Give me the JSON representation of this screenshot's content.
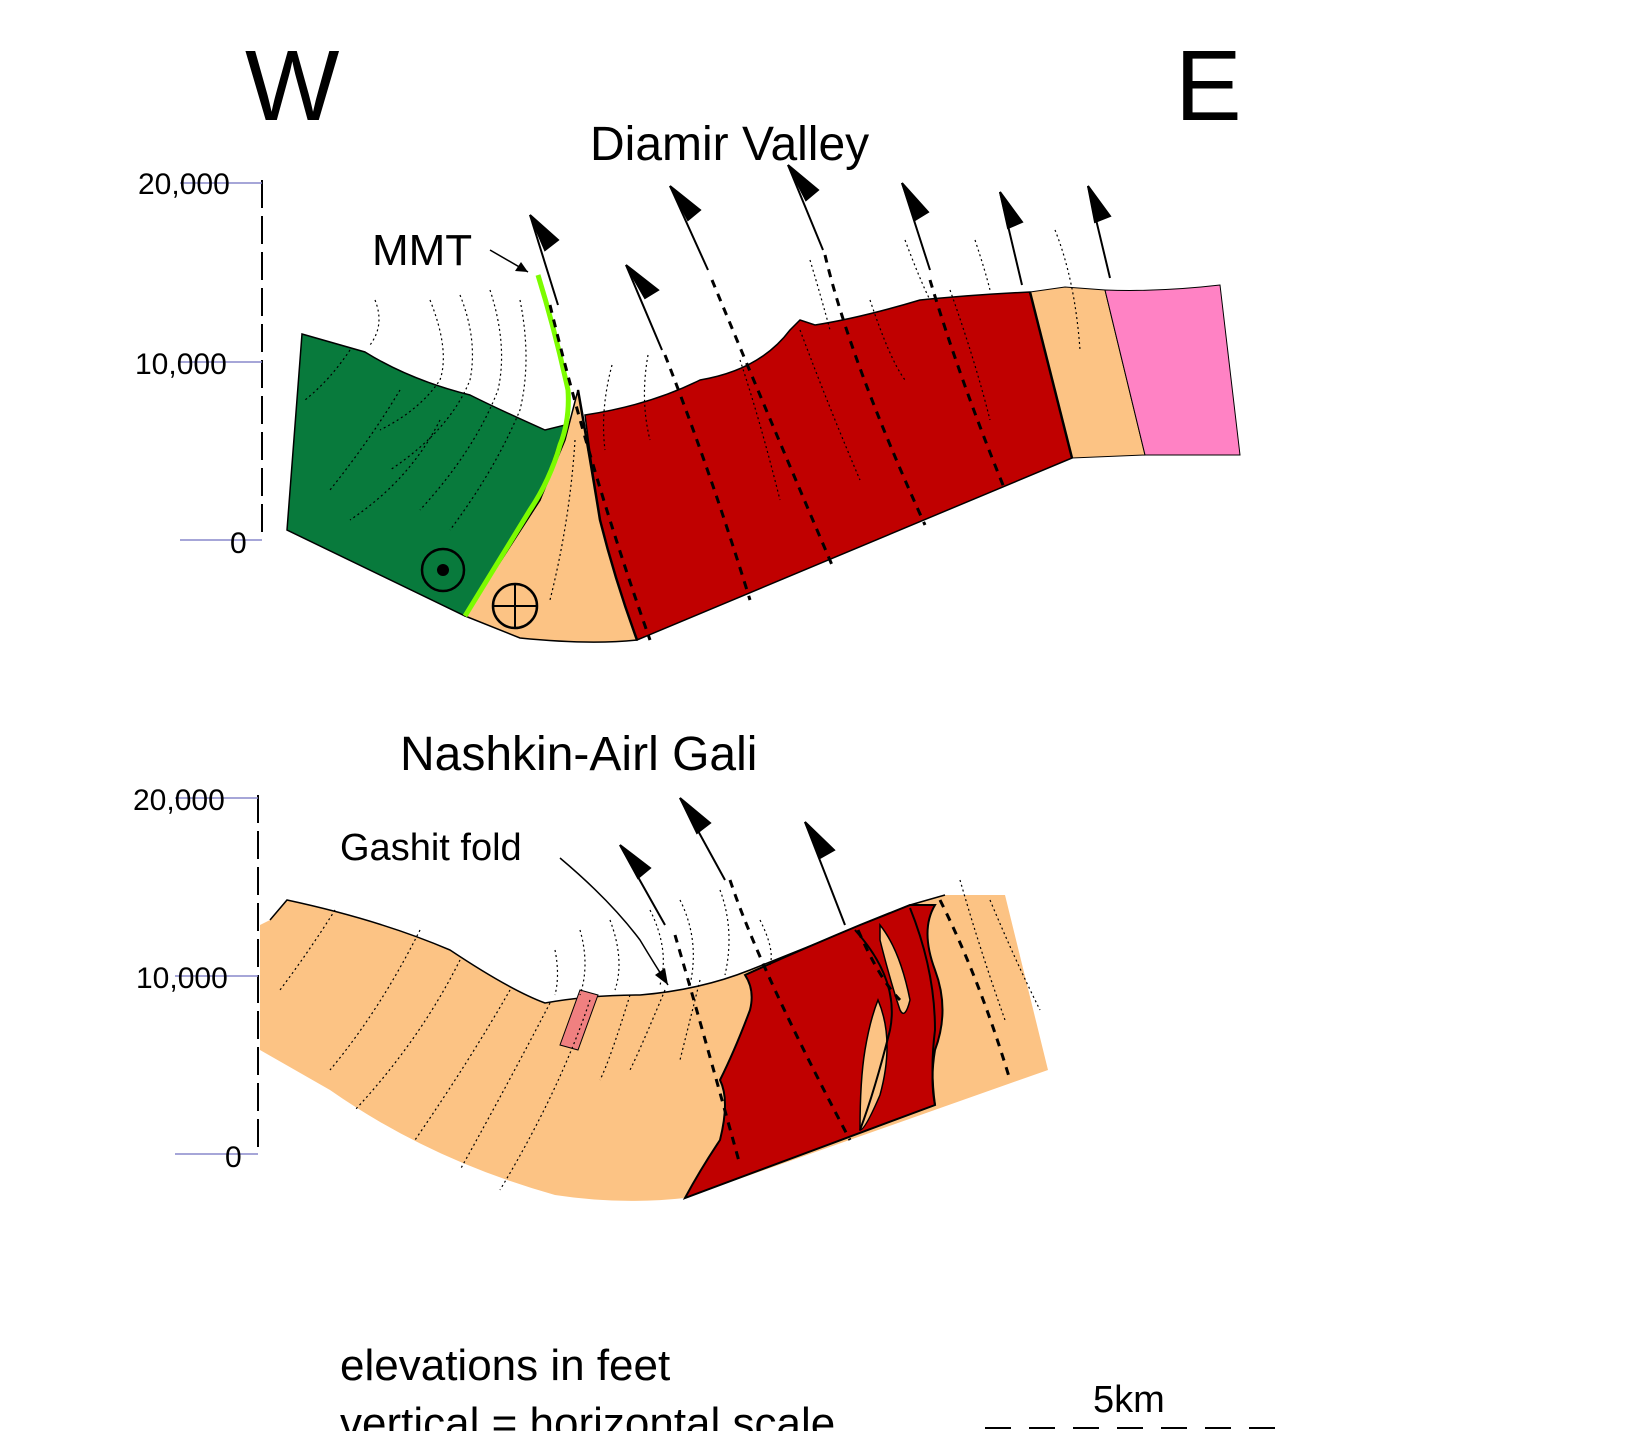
{
  "orientation": {
    "west": "W",
    "east": "E"
  },
  "sections": [
    {
      "title": "Diamir Valley",
      "axis_ticks": [
        "20,000",
        "10,000",
        "0"
      ],
      "labels": {
        "mmt": "MMT"
      },
      "symbols": [
        "out-of-page",
        "into-page"
      ]
    },
    {
      "title": "Nashkin-Airl Gali",
      "axis_ticks": [
        "20,000",
        "10,000",
        "0"
      ],
      "labels": {
        "fold": "Gashit fold"
      }
    }
  ],
  "legend": {
    "line1": "elevations in feet",
    "line2": "vertical = horizontal scale",
    "scale_label": "5km"
  },
  "colors": {
    "green_unit": "#087a3c",
    "red_unit": "#c00000",
    "tan_unit": "#fcc384",
    "pink_unit": "#ff82c4",
    "salmon_unit": "#f08080",
    "mmt_line": "#7cfc00",
    "axis_tick": "#8888cc"
  }
}
